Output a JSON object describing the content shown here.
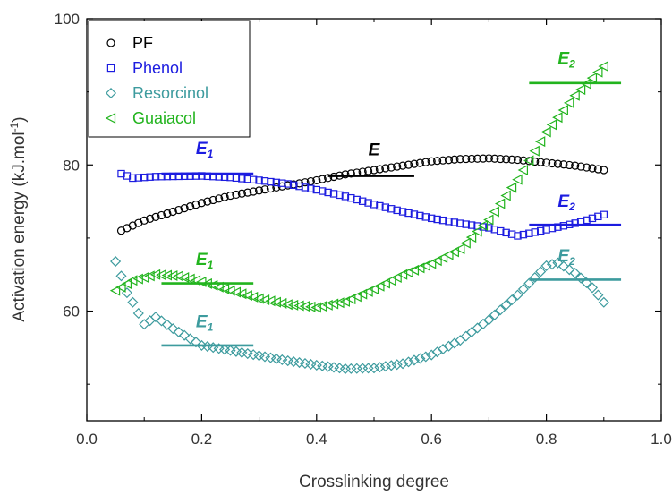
{
  "chart_data": {
    "type": "scatter",
    "xlabel": "Crosslinking degree",
    "ylabel": "Activation energy (kJ.mol",
    "ylabel_sup": "-1",
    "ylabel_end": ")",
    "xlim": [
      0.0,
      1.0
    ],
    "ylim": [
      45,
      100
    ],
    "xticks": [
      0.0,
      0.2,
      0.4,
      0.6,
      0.8,
      1.0
    ],
    "xtick_labels": [
      "0.0",
      "0.2",
      "0.4",
      "0.6",
      "0.8",
      "1.0"
    ],
    "yticks": [
      60,
      80,
      100
    ],
    "ytick_labels": [
      "60",
      "80",
      "100"
    ],
    "grid": false,
    "legend_position": "top-left",
    "series": [
      {
        "name": "PF",
        "marker": "circle",
        "color": "#000000",
        "curve": [
          [
            0.06,
            71.0
          ],
          [
            0.1,
            72.4
          ],
          [
            0.15,
            73.6
          ],
          [
            0.2,
            74.8
          ],
          [
            0.25,
            75.8
          ],
          [
            0.3,
            76.5
          ],
          [
            0.35,
            77.2
          ],
          [
            0.4,
            77.9
          ],
          [
            0.45,
            78.7
          ],
          [
            0.5,
            79.3
          ],
          [
            0.55,
            79.9
          ],
          [
            0.6,
            80.5
          ],
          [
            0.65,
            80.8
          ],
          [
            0.7,
            80.9
          ],
          [
            0.75,
            80.7
          ],
          [
            0.8,
            80.3
          ],
          [
            0.85,
            79.9
          ],
          [
            0.9,
            79.3
          ]
        ]
      },
      {
        "name": "Phenol",
        "marker": "square",
        "color": "#1c1ce0",
        "curve": [
          [
            0.06,
            78.8
          ],
          [
            0.08,
            78.2
          ],
          [
            0.12,
            78.4
          ],
          [
            0.2,
            78.5
          ],
          [
            0.25,
            78.3
          ],
          [
            0.3,
            77.9
          ],
          [
            0.35,
            77.4
          ],
          [
            0.4,
            76.6
          ],
          [
            0.45,
            75.7
          ],
          [
            0.5,
            74.6
          ],
          [
            0.55,
            73.6
          ],
          [
            0.6,
            72.7
          ],
          [
            0.65,
            72.0
          ],
          [
            0.7,
            71.4
          ],
          [
            0.75,
            70.3
          ],
          [
            0.78,
            70.8
          ],
          [
            0.82,
            71.5
          ],
          [
            0.86,
            72.2
          ],
          [
            0.9,
            73.2
          ]
        ]
      },
      {
        "name": "Resorcinol",
        "marker": "diamond",
        "color": "#3d9b9e",
        "curve": [
          [
            0.05,
            66.8
          ],
          [
            0.06,
            64.8
          ],
          [
            0.07,
            62.5
          ],
          [
            0.08,
            61.2
          ],
          [
            0.1,
            58.2
          ],
          [
            0.12,
            59.2
          ],
          [
            0.15,
            57.6
          ],
          [
            0.2,
            55.3
          ],
          [
            0.25,
            54.6
          ],
          [
            0.3,
            53.9
          ],
          [
            0.35,
            53.2
          ],
          [
            0.4,
            52.6
          ],
          [
            0.45,
            52.1
          ],
          [
            0.5,
            52.2
          ],
          [
            0.55,
            52.8
          ],
          [
            0.6,
            54.0
          ],
          [
            0.65,
            56.0
          ],
          [
            0.7,
            58.8
          ],
          [
            0.75,
            62.2
          ],
          [
            0.8,
            66.2
          ],
          [
            0.82,
            66.6
          ],
          [
            0.85,
            65.2
          ],
          [
            0.88,
            63.2
          ],
          [
            0.9,
            61.2
          ]
        ]
      },
      {
        "name": "Guaiacol",
        "marker": "triangle-left",
        "color": "#22b41e",
        "curve": [
          [
            0.05,
            62.8
          ],
          [
            0.08,
            64.2
          ],
          [
            0.12,
            65.0
          ],
          [
            0.16,
            64.8
          ],
          [
            0.2,
            64.0
          ],
          [
            0.25,
            62.8
          ],
          [
            0.3,
            61.7
          ],
          [
            0.35,
            60.9
          ],
          [
            0.4,
            60.5
          ],
          [
            0.45,
            61.3
          ],
          [
            0.5,
            63.0
          ],
          [
            0.55,
            65.0
          ],
          [
            0.6,
            66.5
          ],
          [
            0.65,
            68.5
          ],
          [
            0.7,
            72.5
          ],
          [
            0.75,
            78.0
          ],
          [
            0.8,
            84.5
          ],
          [
            0.85,
            89.5
          ],
          [
            0.9,
            93.5
          ]
        ]
      }
    ],
    "reference_lines": [
      {
        "label": "E",
        "sub": "",
        "color": "#000000",
        "x": [
          0.42,
          0.57
        ],
        "y": 78.5,
        "label_x": 0.5,
        "label_y": 81.3
      },
      {
        "label": "E",
        "sub": "1",
        "color": "#1c1ce0",
        "x": [
          0.13,
          0.29
        ],
        "y": 78.8,
        "label_x": 0.205,
        "label_y": 81.5
      },
      {
        "label": "E",
        "sub": "2",
        "color": "#1c1ce0",
        "x": [
          0.77,
          0.93
        ],
        "y": 71.8,
        "label_x": 0.835,
        "label_y": 74.3
      },
      {
        "label": "E",
        "sub": "1",
        "color": "#3d9b9e",
        "x": [
          0.13,
          0.29
        ],
        "y": 55.3,
        "label_x": 0.205,
        "label_y": 57.8
      },
      {
        "label": "E",
        "sub": "2",
        "color": "#3d9b9e",
        "x": [
          0.77,
          0.93
        ],
        "y": 64.3,
        "label_x": 0.835,
        "label_y": 66.8
      },
      {
        "label": "E",
        "sub": "1",
        "color": "#22b41e",
        "x": [
          0.13,
          0.29
        ],
        "y": 63.8,
        "label_x": 0.205,
        "label_y": 66.3
      },
      {
        "label": "E",
        "sub": "2",
        "color": "#22b41e",
        "x": [
          0.77,
          0.93
        ],
        "y": 91.2,
        "label_x": 0.835,
        "label_y": 93.8
      }
    ]
  }
}
